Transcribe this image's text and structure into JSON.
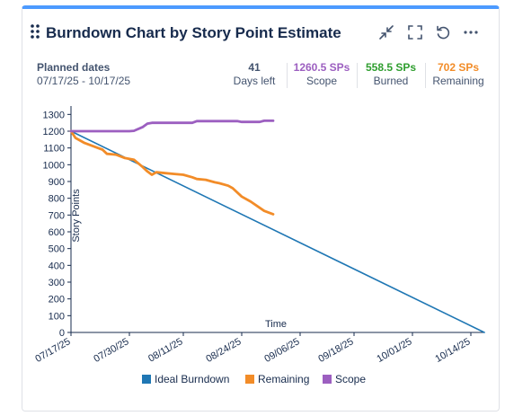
{
  "title": "Burndown Chart by Story Point Estimate",
  "icons": [
    "drag-handle-icon",
    "collapse-icon",
    "fullscreen-icon",
    "refresh-icon",
    "more-options-icon"
  ],
  "planned": {
    "label": "Planned dates",
    "value": "07/17/25 - 10/17/25"
  },
  "stats": [
    {
      "value": "41",
      "label": "Days left",
      "color": "#44546f"
    },
    {
      "value": "1260.5 SPs",
      "label": "Scope",
      "color": "#9c5fc0"
    },
    {
      "value": "558.5 SPs",
      "label": "Burned",
      "color": "#2f9e2f"
    },
    {
      "value": "702 SPs",
      "label": "Remaining",
      "color": "#f28c28"
    }
  ],
  "chart_data": {
    "type": "line",
    "xlabel": "Time",
    "ylabel": "Story Points",
    "ylim": [
      0,
      1350
    ],
    "yticks": [
      0,
      100,
      200,
      300,
      400,
      500,
      600,
      700,
      800,
      900,
      1000,
      1100,
      1200,
      1300
    ],
    "x_range": [
      "07/17/25",
      "10/17/25"
    ],
    "xticks": [
      "07/17/25",
      "07/30/25",
      "08/11/25",
      "08/24/25",
      "09/06/25",
      "09/18/25",
      "10/01/25",
      "10/14/25"
    ],
    "grid": false,
    "legend": "bottom",
    "series": [
      {
        "name": "Ideal Burndown",
        "color": "#1f77b4",
        "points": [
          [
            "07/17/25",
            1200
          ],
          [
            "10/17/25",
            0
          ]
        ]
      },
      {
        "name": "Remaining",
        "color": "#f28c28",
        "points": [
          [
            "07/17/25",
            1200
          ],
          [
            "07/18/25",
            1160
          ],
          [
            "07/20/25",
            1130
          ],
          [
            "07/22/25",
            1110
          ],
          [
            "07/23/25",
            1100
          ],
          [
            "07/24/25",
            1090
          ],
          [
            "07/25/25",
            1065
          ],
          [
            "07/27/25",
            1060
          ],
          [
            "07/29/25",
            1040
          ],
          [
            "07/31/25",
            1030
          ],
          [
            "08/02/25",
            985
          ],
          [
            "08/03/25",
            960
          ],
          [
            "08/04/25",
            940
          ],
          [
            "08/05/25",
            955
          ],
          [
            "08/07/25",
            950
          ],
          [
            "08/09/25",
            945
          ],
          [
            "08/11/25",
            940
          ],
          [
            "08/13/25",
            925
          ],
          [
            "08/14/25",
            915
          ],
          [
            "08/16/25",
            910
          ],
          [
            "08/18/25",
            895
          ],
          [
            "08/19/25",
            890
          ],
          [
            "08/21/25",
            875
          ],
          [
            "08/22/25",
            860
          ],
          [
            "08/24/25",
            810
          ],
          [
            "08/26/25",
            780
          ],
          [
            "08/29/25",
            725
          ],
          [
            "08/31/25",
            705
          ]
        ]
      },
      {
        "name": "Scope",
        "color": "#9c5fc0",
        "points": [
          [
            "07/17/25",
            1200
          ],
          [
            "07/30/25",
            1200
          ],
          [
            "07/31/25",
            1202
          ],
          [
            "08/02/25",
            1225
          ],
          [
            "08/03/25",
            1245
          ],
          [
            "08/04/25",
            1250
          ],
          [
            "08/13/25",
            1250
          ],
          [
            "08/14/25",
            1260
          ],
          [
            "08/23/25",
            1260
          ],
          [
            "08/24/25",
            1255
          ],
          [
            "08/28/25",
            1255
          ],
          [
            "08/29/25",
            1262
          ],
          [
            "08/31/25",
            1262
          ]
        ]
      }
    ]
  }
}
